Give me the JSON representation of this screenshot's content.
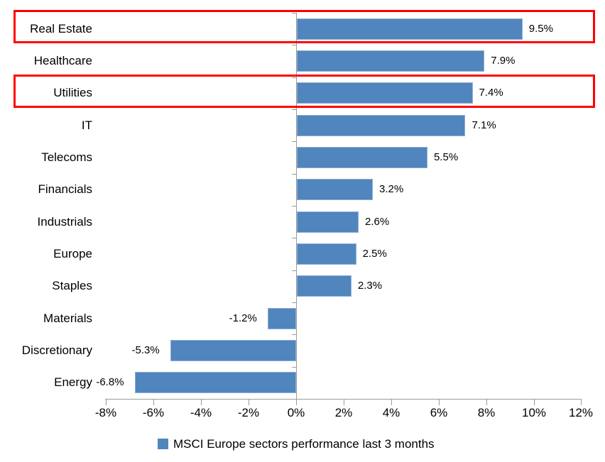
{
  "chart_data": {
    "type": "bar",
    "orientation": "horizontal",
    "title": "",
    "categories": [
      "Real Estate",
      "Healthcare",
      "Utilities",
      "IT",
      "Telecoms",
      "Financials",
      "Industrials",
      "Europe",
      "Staples",
      "Materials",
      "Discretionary",
      "Energy"
    ],
    "values": [
      9.5,
      7.9,
      7.4,
      7.1,
      5.5,
      3.2,
      2.6,
      2.5,
      2.3,
      -1.2,
      -5.3,
      -6.8
    ],
    "data_labels": [
      "9.5%",
      "7.9%",
      "7.4%",
      "7.1%",
      "5.5%",
      "3.2%",
      "2.6%",
      "2.5%",
      "2.3%",
      "-1.2%",
      "-5.3%",
      "-6.8%"
    ],
    "xlabel": "",
    "ylabel": "",
    "xlim": [
      -8,
      12
    ],
    "x_tick_values": [
      -8,
      -6,
      -4,
      -2,
      0,
      2,
      4,
      6,
      8,
      10,
      12
    ],
    "x_tick_labels": [
      "-8%",
      "-6%",
      "-4%",
      "-2%",
      "0%",
      "2%",
      "4%",
      "6%",
      "8%",
      "10%",
      "12%"
    ],
    "grid": false,
    "legend": "MSCI Europe sectors performance last 3 months",
    "legend_position": "bottom",
    "bar_color": "#5085BE",
    "axis_color": "#9A9A9A",
    "text_color": "#000000",
    "highlight_color": "#FF0000",
    "highlighted_categories": [
      "Real Estate",
      "Utilities"
    ]
  }
}
